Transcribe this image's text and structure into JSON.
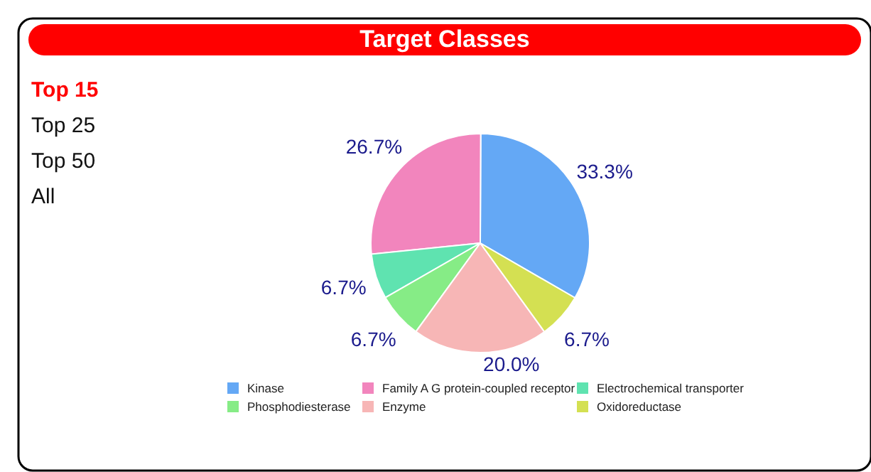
{
  "chart_data": {
    "type": "pie",
    "title": "Target Classes",
    "categories": [
      "Kinase",
      "Family A G protein-coupled receptor",
      "Electrochemical transporter",
      "Phosphodiesterase",
      "Enzyme",
      "Oxidoreductase"
    ],
    "values": [
      33.3,
      26.7,
      6.7,
      6.7,
      20.0,
      6.7
    ],
    "value_labels": [
      "33.3%",
      "26.7%",
      "6.7%",
      "6.7%",
      "20.0%",
      "6.7%"
    ],
    "colors": [
      "#64a8f5",
      "#f285bd",
      "#5fe3b0",
      "#86ec86",
      "#f7b6b6",
      "#d4e052"
    ],
    "legend": "bottom",
    "annotations": [
      "Top 15",
      "Top 25",
      "Top 50",
      "All"
    ]
  }
}
